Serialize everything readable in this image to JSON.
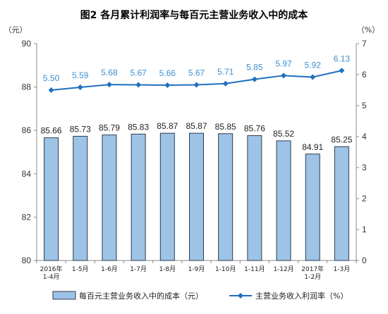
{
  "chart_data": {
    "type": "bar+line",
    "title": "图2  各月累计利润率与每百元主营业务收入中的成本",
    "left_unit": "（元）",
    "right_unit": "（%）",
    "categories": [
      [
        "2016年",
        "1-4月"
      ],
      [
        "1-5月"
      ],
      [
        "1-6月"
      ],
      [
        "1-7月"
      ],
      [
        "1-8月"
      ],
      [
        "1-9月"
      ],
      [
        "1-10月"
      ],
      [
        "1-11月"
      ],
      [
        "1-12月"
      ],
      [
        "2017年",
        "1-2月"
      ],
      [
        "1-3月"
      ]
    ],
    "series": [
      {
        "name": "每百元主营业务收入中的成本（元）",
        "type": "bar",
        "axis": "left",
        "values": [
          85.66,
          85.73,
          85.79,
          85.83,
          85.87,
          85.87,
          85.85,
          85.76,
          85.52,
          84.91,
          85.25
        ],
        "labels": [
          "85.66",
          "85.73",
          "85.79",
          "85.83",
          "85.87",
          "85.87",
          "85.85",
          "85.76",
          "85.52",
          "84.91",
          "85.25"
        ]
      },
      {
        "name": "主营业务收入利润率（%）",
        "type": "line",
        "axis": "right",
        "values": [
          5.5,
          5.59,
          5.68,
          5.67,
          5.66,
          5.67,
          5.71,
          5.85,
          5.97,
          5.92,
          6.13
        ],
        "labels": [
          "5.50",
          "5.59",
          "5.68",
          "5.67",
          "5.66",
          "5.67",
          "5.71",
          "5.85",
          "5.97",
          "5.92",
          "6.13"
        ]
      }
    ],
    "left_axis": {
      "min": 80,
      "max": 90,
      "ticks": [
        "80",
        "82",
        "84",
        "86",
        "88",
        "90"
      ]
    },
    "right_axis": {
      "min": 0,
      "max": 7,
      "ticks": [
        "0",
        "1",
        "2",
        "3",
        "4",
        "5",
        "6",
        "7"
      ]
    },
    "legend_position": "bottom",
    "grid": false,
    "colors": {
      "bar_fill": "#9dc3e6",
      "bar_stroke": "#2f3b4c",
      "line": "#1f6fc0",
      "line_label": "#3d8fd1"
    }
  }
}
